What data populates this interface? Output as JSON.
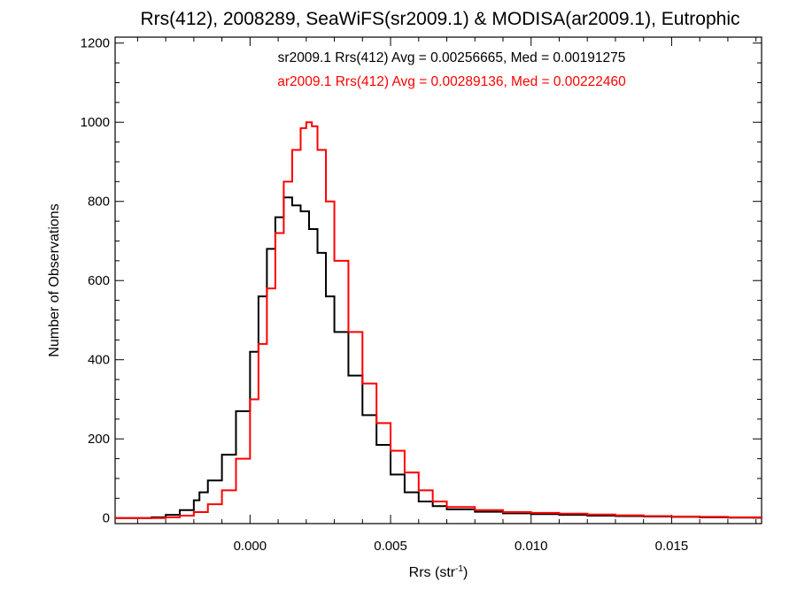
{
  "chart_data": {
    "type": "step-histogram",
    "title": "Rrs(412), 2008289, SeaWiFS(sr2009.1) & MODISA(ar2009.1), Eutrophic",
    "xlabel_main": "Rrs (str",
    "xlabel_sup": "-1",
    "xlabel_close": ")",
    "ylabel": "Number of Observations",
    "xlim": [
      -0.0048,
      0.0182
    ],
    "ylim": [
      -14,
      1215
    ],
    "xticks": [
      0.0,
      0.005,
      0.01,
      0.015
    ],
    "xtick_labels": [
      "0.000",
      "0.005",
      "0.010",
      "0.015"
    ],
    "yticks": [
      0,
      200,
      400,
      600,
      800,
      1000,
      1200
    ],
    "ytick_labels": [
      "0",
      "200",
      "400",
      "600",
      "800",
      "1000",
      "1200"
    ],
    "grid": false,
    "annotations": [
      {
        "text": "sr2009.1 Rrs(412) Avg = 0.00256665, Med = 0.00191275",
        "color": "#000000"
      },
      {
        "text": "ar2009.1 Rrs(412) Avg = 0.00289136, Med = 0.00222460",
        "color": "#ff0000"
      }
    ],
    "series": [
      {
        "color": "#000000",
        "x": [
          -0.0048,
          -0.0035,
          -0.003,
          -0.0025,
          -0.002,
          -0.0018,
          -0.0015,
          -0.001,
          -0.0005,
          0.0,
          0.0003,
          0.0006,
          0.0009,
          0.0012,
          0.0015,
          0.0018,
          0.0021,
          0.0024,
          0.0027,
          0.003,
          0.0035,
          0.004,
          0.0045,
          0.005,
          0.0055,
          0.006,
          0.0065,
          0.007,
          0.008,
          0.009,
          0.01,
          0.011,
          0.012,
          0.013,
          0.014,
          0.015,
          0.016,
          0.017,
          0.0182
        ],
        "y": [
          0,
          2,
          8,
          20,
          45,
          65,
          95,
          160,
          270,
          420,
          560,
          680,
          760,
          810,
          790,
          775,
          730,
          670,
          560,
          470,
          360,
          260,
          185,
          110,
          65,
          42,
          30,
          22,
          16,
          12,
          10,
          8,
          6,
          5,
          4,
          3,
          2,
          1,
          0
        ]
      },
      {
        "color": "#ff0000",
        "x": [
          -0.0048,
          -0.003,
          -0.0025,
          -0.002,
          -0.0015,
          -0.001,
          -0.0005,
          0.0,
          0.0003,
          0.0006,
          0.0009,
          0.0012,
          0.0015,
          0.0018,
          0.002,
          0.0022,
          0.0024,
          0.0027,
          0.003,
          0.0035,
          0.004,
          0.0045,
          0.005,
          0.0055,
          0.006,
          0.0065,
          0.007,
          0.008,
          0.009,
          0.01,
          0.011,
          0.012,
          0.013,
          0.014,
          0.015,
          0.016,
          0.017,
          0.0182
        ],
        "y": [
          0,
          2,
          6,
          15,
          35,
          70,
          150,
          300,
          440,
          580,
          720,
          850,
          930,
          985,
          1000,
          990,
          930,
          800,
          650,
          470,
          340,
          240,
          170,
          115,
          70,
          42,
          28,
          20,
          15,
          13,
          11,
          9,
          7,
          5,
          4,
          3,
          2,
          0
        ]
      }
    ]
  }
}
